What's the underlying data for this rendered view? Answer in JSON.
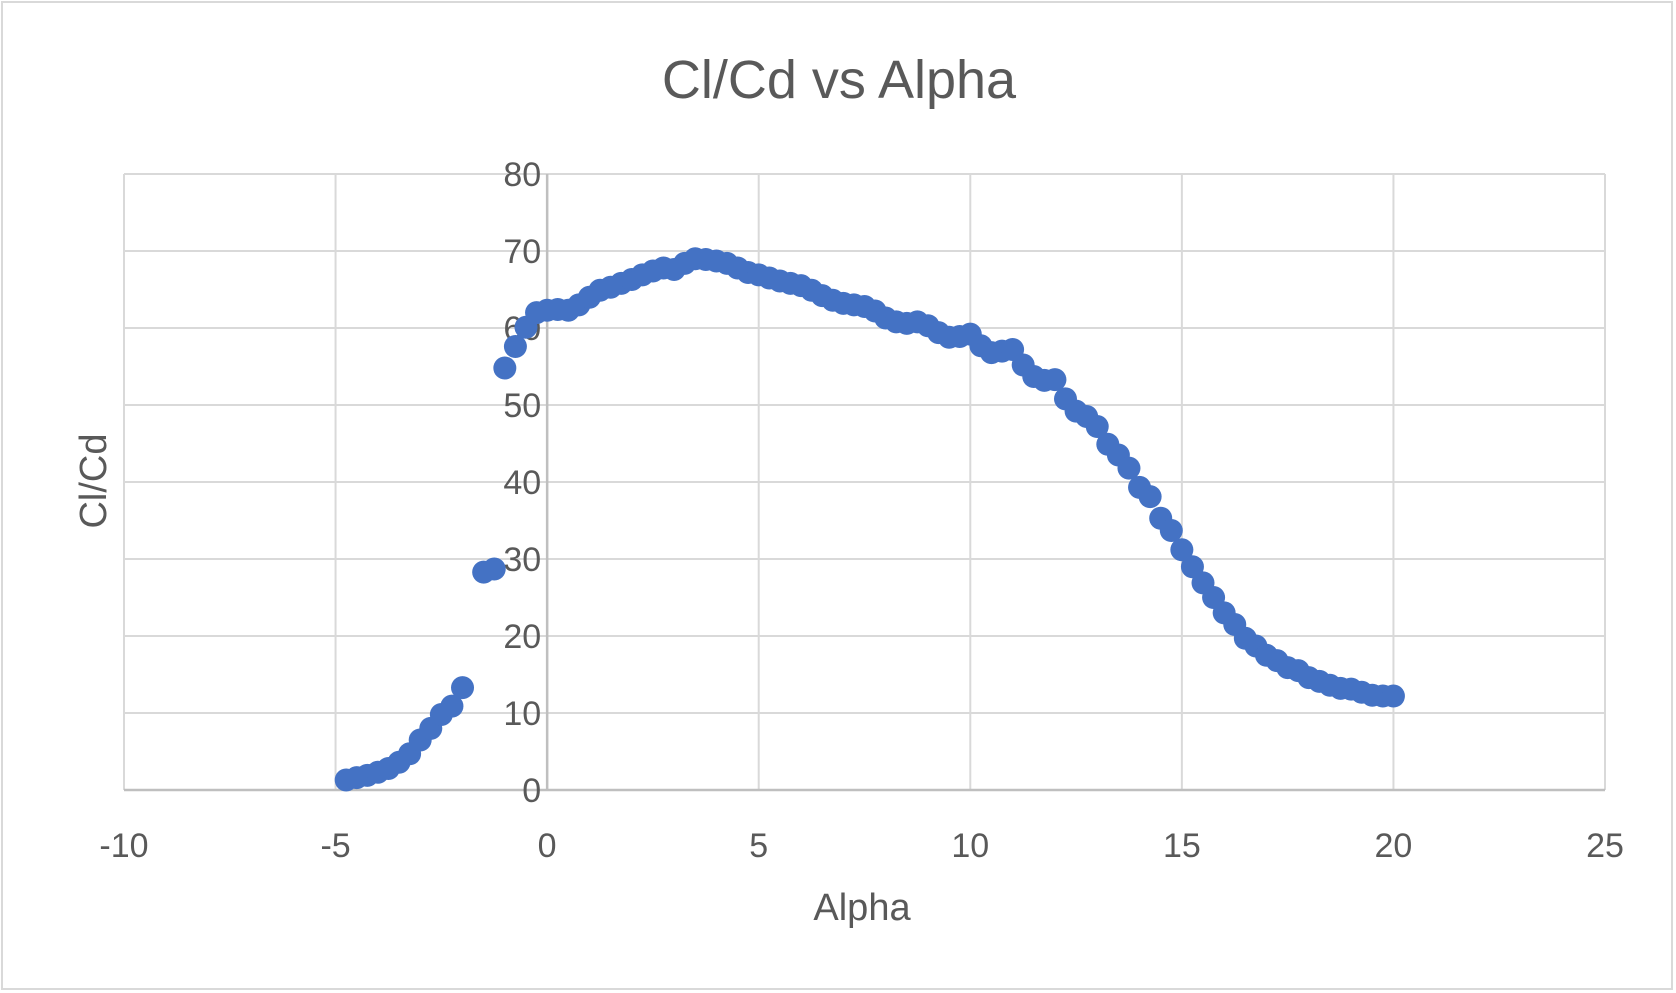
{
  "chart_data": {
    "type": "scatter",
    "title": "Cl/Cd vs Alpha",
    "xlabel": "Alpha",
    "ylabel": "Cl/Cd",
    "xlim": [
      -10,
      25
    ],
    "ylim": [
      0,
      80
    ],
    "x_ticks": [
      -10,
      -5,
      0,
      5,
      10,
      15,
      20,
      25
    ],
    "y_ticks": [
      0,
      10,
      20,
      30,
      40,
      50,
      60,
      70,
      80
    ],
    "x_tick_labels": [
      "-10",
      "-5",
      "0",
      "5",
      "10",
      "15",
      "20",
      "25"
    ],
    "y_tick_labels": [
      "0",
      "10",
      "20",
      "30",
      "40",
      "50",
      "60",
      "70",
      "80"
    ],
    "grid": true,
    "legend": "none",
    "marker_color": "#4472c4",
    "series": [
      {
        "x": [
          -4.75,
          -4.5,
          -4.25,
          -4.0,
          -3.75,
          -3.5,
          -3.25,
          -3.0,
          -2.75,
          -2.5,
          -2.25,
          -2.0,
          -1.5,
          -1.25,
          -1.0,
          -0.75,
          -0.5,
          -0.25,
          0.0,
          0.25,
          0.5,
          0.75,
          1.0,
          1.25,
          1.5,
          1.75,
          2.0,
          2.25,
          2.5,
          2.75,
          3.0,
          3.25,
          3.5,
          3.75,
          4.0,
          4.25,
          4.5,
          4.75,
          5.0,
          5.25,
          5.5,
          5.75,
          6.0,
          6.25,
          6.5,
          6.75,
          7.0,
          7.25,
          7.5,
          7.75,
          8.0,
          8.25,
          8.5,
          8.75,
          9.0,
          9.25,
          9.5,
          9.75,
          10.0,
          10.25,
          10.5,
          10.75,
          11.0,
          11.25,
          11.5,
          11.75,
          12.0,
          12.25,
          12.5,
          12.75,
          13.0,
          13.25,
          13.5,
          13.75,
          14.0,
          14.25,
          14.5,
          14.75,
          15.0,
          15.25,
          15.5,
          15.75,
          16.0,
          16.25,
          16.5,
          16.75,
          17.0,
          17.25,
          17.5,
          17.75,
          18.0,
          18.25,
          18.5,
          18.75,
          19.0,
          19.25,
          19.5,
          19.75,
          20.0
        ],
        "y": [
          1.3,
          1.6,
          1.9,
          2.3,
          2.8,
          3.6,
          4.7,
          6.5,
          8.0,
          9.8,
          10.9,
          13.3,
          28.3,
          28.7,
          54.8,
          57.6,
          60.1,
          62.0,
          62.3,
          62.4,
          62.3,
          63.0,
          64.0,
          64.9,
          65.3,
          65.8,
          66.3,
          66.9,
          67.4,
          67.8,
          67.6,
          68.4,
          69.0,
          68.9,
          68.7,
          68.4,
          67.8,
          67.2,
          66.9,
          66.5,
          66.1,
          65.8,
          65.5,
          64.9,
          64.2,
          63.6,
          63.2,
          63.0,
          62.8,
          62.2,
          61.3,
          60.8,
          60.6,
          60.8,
          60.3,
          59.4,
          58.8,
          58.9,
          59.2,
          57.7,
          56.8,
          57.0,
          57.2,
          55.2,
          53.7,
          53.2,
          53.3,
          50.8,
          49.2,
          48.5,
          47.2,
          44.9,
          43.5,
          41.8,
          39.3,
          38.1,
          35.3,
          33.7,
          31.2,
          29.0,
          26.9,
          25.0,
          23.0,
          21.5,
          19.7,
          18.7,
          17.5,
          16.8,
          15.9,
          15.5,
          14.6,
          14.1,
          13.6,
          13.2,
          13.1,
          12.7,
          12.3,
          12.2,
          12.2
        ]
      }
    ]
  }
}
